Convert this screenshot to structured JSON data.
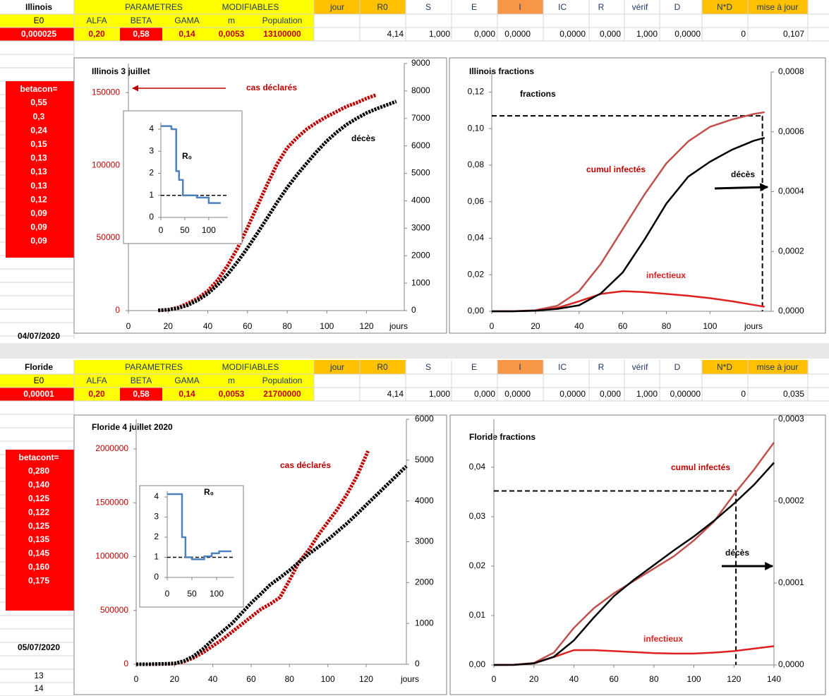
{
  "panels": [
    {
      "header": [
        "Illinois",
        "PARAMETRES",
        "MODIFIABLES",
        "jour",
        "R0",
        "S",
        "E",
        "I",
        "IC",
        "R",
        "vérif",
        "D",
        "N*D",
        "mise à jour"
      ],
      "param_labels": [
        "E0",
        "ALFA",
        "BETA",
        "GAMA",
        "m",
        "Population"
      ],
      "values_row": [
        "0,000025",
        "0,20",
        "0,58",
        "0,14",
        "0,0053",
        "13100000",
        "4,14",
        "1,000",
        "0,000",
        "0,0000",
        "0,0000",
        "0,000",
        "1,000",
        "0,0000",
        "0",
        "0,107"
      ],
      "betacon_label": "betacon=",
      "betacon": [
        "0,55",
        "0,3",
        "0,24",
        "0,15",
        "0,13",
        "0,13",
        "0,13",
        "0,12",
        "0,09",
        "0,09",
        "0,09"
      ],
      "date": "04/07/2020",
      "charts": [
        {
          "type": "line",
          "title": "Illinois 3 juillet",
          "xlabel": "jours",
          "yaxis_color": "#c00000",
          "xlim": [
            0,
            139
          ],
          "xticks": [
            0,
            20,
            40,
            60,
            80,
            100,
            120
          ],
          "ylim": [
            0,
            170000
          ],
          "yticks": [
            0,
            50000,
            100000,
            150000
          ],
          "y2lim": [
            0,
            9000
          ],
          "y2ticks": [
            0,
            1000,
            2000,
            3000,
            4000,
            5000,
            6000,
            7000,
            8000,
            9000
          ],
          "series": [
            {
              "name": "cas déclarés",
              "color": "#c00000",
              "style": "dots",
              "x": [
                15,
                20,
                25,
                30,
                35,
                40,
                45,
                50,
                55,
                60,
                65,
                70,
                75,
                80,
                85,
                90,
                95,
                100,
                105,
                110,
                115,
                120,
                125
              ],
              "values": [
                200,
                600,
                2000,
                5000,
                8500,
                13500,
                21000,
                31000,
                43000,
                57000,
                72000,
                87000,
                101000,
                112000,
                119000,
                125000,
                129500,
                133500,
                137000,
                140500,
                143000,
                146000,
                148500
              ]
            },
            {
              "name": "décès",
              "color": "#000000",
              "style": "dots",
              "axis": "y2",
              "x": [
                15,
                20,
                25,
                30,
                35,
                40,
                45,
                50,
                55,
                60,
                65,
                70,
                75,
                80,
                85,
                90,
                95,
                100,
                105,
                110,
                115,
                120,
                125,
                135
              ],
              "values": [
                5,
                30,
                90,
                200,
                380,
                620,
                940,
                1320,
                1780,
                2280,
                2820,
                3380,
                3950,
                4480,
                4950,
                5380,
                5800,
                6180,
                6500,
                6780,
                7000,
                7200,
                7350,
                7620
              ]
            }
          ]
        },
        {
          "type": "step",
          "title": "R₀",
          "xlim": [
            0,
            140
          ],
          "xticks": [
            0,
            50,
            100
          ],
          "ylim": [
            0,
            4.3
          ],
          "yticks": [
            0,
            1,
            2,
            3,
            4
          ],
          "reference_y": 1,
          "series": [
            {
              "color": "#4f81bd",
              "x": [
                0,
                22,
                22,
                32,
                32,
                38,
                38,
                46,
                46,
                75,
                75,
                100,
                100,
                125
              ],
              "values": [
                4.14,
                4.14,
                4.0,
                4.0,
                2.1,
                2.1,
                1.7,
                1.7,
                1.0,
                1.0,
                0.9,
                0.9,
                0.65,
                0.65
              ]
            }
          ]
        },
        {
          "type": "line",
          "title": "Illinois  fractions",
          "ylabel": "fractions",
          "xlabel": "jours",
          "xlim": [
            0,
            128
          ],
          "xticks": [
            0,
            20,
            40,
            60,
            80,
            100
          ],
          "ylim": [
            0,
            0.131
          ],
          "yticks": [
            {
              "value": 0,
              "label": "0,00"
            },
            {
              "value": 0.02,
              "label": "0,02"
            },
            {
              "value": 0.04,
              "label": "0,04"
            },
            {
              "value": 0.06,
              "label": "0,06"
            },
            {
              "value": 0.08,
              "label": "0,08"
            },
            {
              "value": 0.1,
              "label": "0,10"
            },
            {
              "value": 0.12,
              "label": "0,12"
            }
          ],
          "y2lim": [
            0,
            0.0008
          ],
          "y2ticks": [
            {
              "value": 0,
              "label": "0,0000"
            },
            {
              "value": 0.0002,
              "label": "0,0002"
            },
            {
              "value": 0.0004,
              "label": "0,0004"
            },
            {
              "value": 0.0006,
              "label": "0,0006"
            },
            {
              "value": 0.0008,
              "label": "0,0008"
            }
          ],
          "reference": {
            "x": 124,
            "y": 0.107
          },
          "series": [
            {
              "name": "cumul infectés",
              "color": "#c0504d",
              "x": [
                0,
                10,
                20,
                30,
                40,
                50,
                60,
                70,
                80,
                90,
                100,
                110,
                120,
                125
              ],
              "values": [
                0,
                5e-05,
                0.0006,
                0.003,
                0.011,
                0.026,
                0.045,
                0.064,
                0.081,
                0.093,
                0.101,
                0.105,
                0.108,
                0.109
              ]
            },
            {
              "name": "infectieux",
              "color": "#e02020",
              "x": [
                0,
                10,
                20,
                30,
                40,
                50,
                60,
                70,
                80,
                90,
                100,
                110,
                120,
                125
              ],
              "values": [
                0,
                3e-05,
                0.0003,
                0.0018,
                0.0055,
                0.0095,
                0.011,
                0.0105,
                0.0095,
                0.0085,
                0.0072,
                0.0055,
                0.0035,
                0.0025
              ]
            },
            {
              "name": "décès",
              "color": "#000000",
              "axis": "y2",
              "x": [
                0,
                10,
                20,
                30,
                40,
                50,
                60,
                70,
                80,
                90,
                100,
                110,
                120,
                125
              ],
              "values": [
                0,
                0,
                2e-06,
                8e-06,
                2e-05,
                6e-05,
                0.00013,
                0.00024,
                0.00036,
                0.00045,
                0.0005,
                0.00054,
                0.00057,
                0.00058
              ]
            }
          ]
        }
      ]
    },
    {
      "header": [
        "Floride",
        "PARAMETRES",
        "MODIFIABLES",
        "jour",
        "R0",
        "S",
        "E",
        "I",
        "IC",
        "R",
        "vérif",
        "D",
        "N*D",
        "mise à jour"
      ],
      "param_labels": [
        "E0",
        "ALFA",
        "BETA",
        "GAMA",
        "m",
        "Population"
      ],
      "values_row": [
        "0,00001",
        "0,20",
        "0,58",
        "0,14",
        "0,0053",
        "21700000",
        "4,14",
        "1,000",
        "0,000",
        "0,0000",
        "0,0000",
        "0,000",
        "1,000",
        "0,00000",
        "0",
        "0,035"
      ],
      "betacon_label": "betacont=",
      "betacon": [
        "0,280",
        "0,140",
        "0,125",
        "0,122",
        "0,125",
        "0,135",
        "0,145",
        "0,160",
        "0,175"
      ],
      "date": "05/07/2020",
      "row_numbers": [
        "13",
        "14"
      ],
      "charts": [
        {
          "type": "line",
          "title": "Floride 4 juillet 2020",
          "xlabel": "jours",
          "yaxis_color": "#c00000",
          "xlim": [
            0,
            141
          ],
          "xticks": [
            0,
            20,
            40,
            60,
            80,
            100,
            120
          ],
          "ylim": [
            0,
            2275000
          ],
          "yticks": [
            0,
            500000,
            1000000,
            1500000,
            2000000
          ],
          "y2lim": [
            0,
            6000
          ],
          "y2ticks": [
            0,
            1000,
            2000,
            3000,
            4000,
            5000,
            6000
          ],
          "series": [
            {
              "name": "cas déclarés",
              "color": "#c00000",
              "style": "dots",
              "x": [
                0,
                5,
                10,
                15,
                20,
                25,
                30,
                35,
                40,
                45,
                50,
                55,
                60,
                65,
                70,
                75,
                80,
                85,
                90,
                95,
                100,
                105,
                110,
                115,
                121
              ],
              "values": [
                0,
                0,
                500,
                2000,
                6000,
                25000,
                60000,
                110000,
                170000,
                230000,
                300000,
                370000,
                440000,
                510000,
                560000,
                620000,
                780000,
                950000,
                1060000,
                1200000,
                1320000,
                1440000,
                1580000,
                1740000,
                1980000
              ]
            },
            {
              "color": "#000000",
              "style": "dots",
              "axis": "y2",
              "x": [
                0,
                5,
                10,
                15,
                20,
                25,
                30,
                35,
                40,
                45,
                50,
                55,
                60,
                65,
                70,
                75,
                80,
                85,
                90,
                95,
                100,
                105,
                110,
                115,
                120,
                141
              ],
              "values": [
                0,
                0,
                5,
                10,
                20,
                80,
                200,
                380,
                600,
                800,
                1000,
                1250,
                1500,
                1720,
                1950,
                2120,
                2300,
                2500,
                2700,
                2870,
                3050,
                3250,
                3450,
                3670,
                3900,
                4850
              ]
            }
          ]
        },
        {
          "type": "step",
          "title": "R₀",
          "xlim": [
            0,
            135
          ],
          "xticks": [
            0,
            50,
            100
          ],
          "ylim": [
            0,
            4.3
          ],
          "yticks": [
            0,
            1,
            2,
            3,
            4
          ],
          "reference_y": 1,
          "series": [
            {
              "color": "#4f81bd",
              "x": [
                0,
                30,
                30,
                37,
                37,
                50,
                50,
                75,
                75,
                90,
                90,
                105,
                105,
                130
              ],
              "values": [
                4.14,
                4.14,
                2.0,
                2.0,
                1.0,
                1.0,
                0.9,
                0.9,
                1.05,
                1.05,
                1.2,
                1.2,
                1.3,
                1.3
              ]
            }
          ]
        },
        {
          "type": "line",
          "title": "Floride fractions",
          "xlim": [
            0,
            140
          ],
          "xticks": [
            0,
            20,
            40,
            60,
            80,
            100,
            120,
            140
          ],
          "ylim": [
            0,
            0.0497
          ],
          "yticks": [
            {
              "value": 0,
              "label": "0,00"
            },
            {
              "value": 0.01,
              "label": "0,01"
            },
            {
              "value": 0.02,
              "label": "0,02"
            },
            {
              "value": 0.03,
              "label": "0,03"
            },
            {
              "value": 0.04,
              "label": "0,04"
            }
          ],
          "y2lim": [
            0,
            0.0003
          ],
          "y2ticks": [
            {
              "value": 0,
              "label": "0,0000"
            },
            {
              "value": 0.0001,
              "label": "0,0001"
            },
            {
              "value": 0.0002,
              "label": "0,0002"
            },
            {
              "value": 0.0003,
              "label": "0,0003"
            }
          ],
          "reference": {
            "x": 121,
            "y": 0.0352
          },
          "series": [
            {
              "name": "cumul infectés",
              "color": "#c0504d",
              "x": [
                0,
                10,
                20,
                30,
                40,
                50,
                60,
                70,
                80,
                90,
                100,
                110,
                120,
                130,
                140
              ],
              "values": [
                0,
                5e-05,
                0.0004,
                0.0025,
                0.0075,
                0.0115,
                0.0145,
                0.017,
                0.0195,
                0.022,
                0.0252,
                0.029,
                0.0345,
                0.0395,
                0.045
              ]
            },
            {
              "name": "infectieux",
              "color": "#e02020",
              "x": [
                0,
                10,
                20,
                30,
                40,
                50,
                60,
                70,
                80,
                90,
                100,
                110,
                120,
                130,
                140
              ],
              "values": [
                0,
                3e-05,
                0.0003,
                0.0016,
                0.003,
                0.003,
                0.0028,
                0.0026,
                0.0024,
                0.0023,
                0.0023,
                0.0025,
                0.0028,
                0.0033,
                0.0038
              ]
            },
            {
              "name": "décès",
              "color": "#000000",
              "axis": "y2",
              "x": [
                0,
                10,
                20,
                30,
                40,
                50,
                60,
                70,
                80,
                90,
                100,
                110,
                120,
                130,
                140
              ],
              "values": [
                0,
                0,
                2e-06,
                1e-05,
                3e-05,
                5.8e-05,
                8.4e-05,
                0.000104,
                0.000122,
                0.00014,
                0.000157,
                0.000176,
                0.000197,
                0.00022,
                0.000247
              ]
            }
          ]
        }
      ]
    }
  ]
}
